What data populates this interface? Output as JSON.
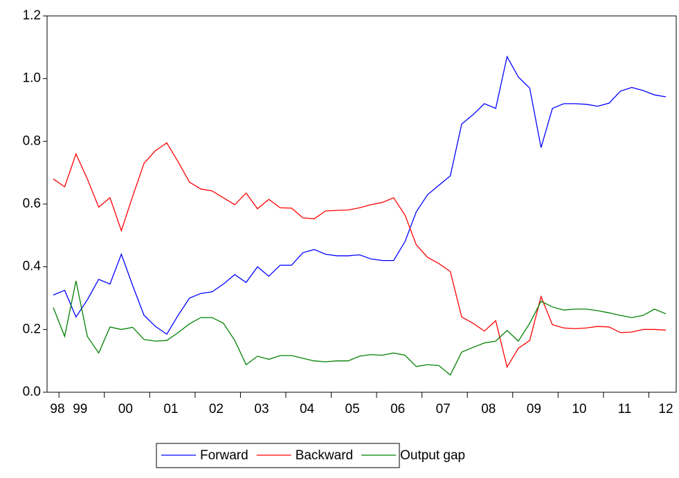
{
  "chart_data": {
    "type": "line",
    "categories": [
      "98",
      null,
      "99",
      null,
      null,
      null,
      "00",
      null,
      null,
      null,
      "01",
      null,
      null,
      null,
      "02",
      null,
      null,
      null,
      "03",
      null,
      null,
      null,
      "04",
      null,
      null,
      null,
      "05",
      null,
      null,
      null,
      "06",
      null,
      null,
      null,
      "07",
      null,
      null,
      null,
      "08",
      null,
      null,
      null,
      "09",
      null,
      null,
      null,
      "10",
      null,
      null,
      null,
      "11",
      null,
      null,
      null,
      "12"
    ],
    "series": [
      {
        "name": "Forward",
        "color": "#0000ff",
        "values": [
          0.31,
          0.325,
          0.24,
          0.295,
          0.36,
          0.345,
          0.44,
          0.34,
          0.245,
          0.21,
          0.185,
          0.245,
          0.3,
          0.315,
          0.32,
          0.345,
          0.375,
          0.35,
          0.4,
          0.37,
          0.405,
          0.405,
          0.445,
          0.455,
          0.44,
          0.435,
          0.435,
          0.438,
          0.425,
          0.42,
          0.42,
          0.48,
          0.575,
          0.63,
          0.66,
          0.69,
          0.855,
          0.885,
          0.92,
          0.905,
          1.07,
          1.005,
          0.97,
          0.78,
          0.905,
          0.92,
          0.92,
          0.918,
          0.912,
          0.922,
          0.96,
          0.972,
          0.962,
          0.948,
          0.942
        ]
      },
      {
        "name": "Backward",
        "color": "#ff0000",
        "values": [
          0.68,
          0.655,
          0.76,
          0.68,
          0.59,
          0.62,
          0.515,
          0.625,
          0.73,
          0.77,
          0.795,
          0.735,
          0.67,
          0.648,
          0.642,
          0.62,
          0.598,
          0.635,
          0.585,
          0.615,
          0.588,
          0.587,
          0.556,
          0.553,
          0.578,
          0.58,
          0.581,
          0.588,
          0.598,
          0.605,
          0.62,
          0.565,
          0.47,
          0.43,
          0.41,
          0.385,
          0.24,
          0.22,
          0.195,
          0.228,
          0.08,
          0.14,
          0.165,
          0.305,
          0.215,
          0.205,
          0.203,
          0.205,
          0.21,
          0.208,
          0.19,
          0.192,
          0.2,
          0.2,
          0.198
        ]
      },
      {
        "name": "Output gap",
        "color": "#008000",
        "values": [
          0.27,
          0.178,
          0.355,
          0.178,
          0.125,
          0.208,
          0.2,
          0.207,
          0.168,
          0.163,
          0.165,
          0.19,
          0.218,
          0.238,
          0.238,
          0.22,
          0.165,
          0.088,
          0.115,
          0.105,
          0.117,
          0.117,
          0.108,
          0.1,
          0.097,
          0.1,
          0.1,
          0.115,
          0.12,
          0.118,
          0.125,
          0.118,
          0.082,
          0.088,
          0.085,
          0.055,
          0.128,
          0.143,
          0.157,
          0.163,
          0.197,
          0.163,
          0.22,
          0.29,
          0.272,
          0.262,
          0.265,
          0.265,
          0.26,
          0.253,
          0.245,
          0.238,
          0.245,
          0.265,
          0.25
        ]
      }
    ],
    "ylim": [
      0,
      1.2
    ],
    "yticks": [
      {
        "value": 0,
        "label": "0.0"
      },
      0.2,
      0.4,
      0.6,
      0.8,
      {
        "value": 1,
        "label": "1.0"
      },
      1.2
    ],
    "legend": "bottom"
  }
}
